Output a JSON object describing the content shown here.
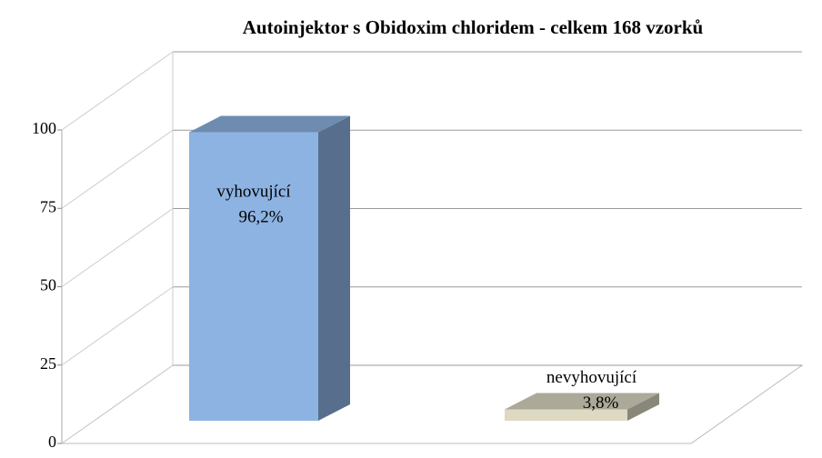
{
  "chart_data": {
    "type": "bar3d",
    "title": "Autoinjektor  s Obidoxim  chloridem  - celkem 168 vzorků",
    "categories": [
      "vyhovující",
      "nevyhovující"
    ],
    "values": [
      96.2,
      3.8
    ],
    "value_labels": [
      "96,2%",
      "3,8%"
    ],
    "colors": [
      "#8db3e2",
      "#ddd9c3"
    ],
    "ylim": [
      0,
      100
    ],
    "yticks": [
      0,
      25,
      50,
      75,
      100
    ],
    "grid": true
  }
}
